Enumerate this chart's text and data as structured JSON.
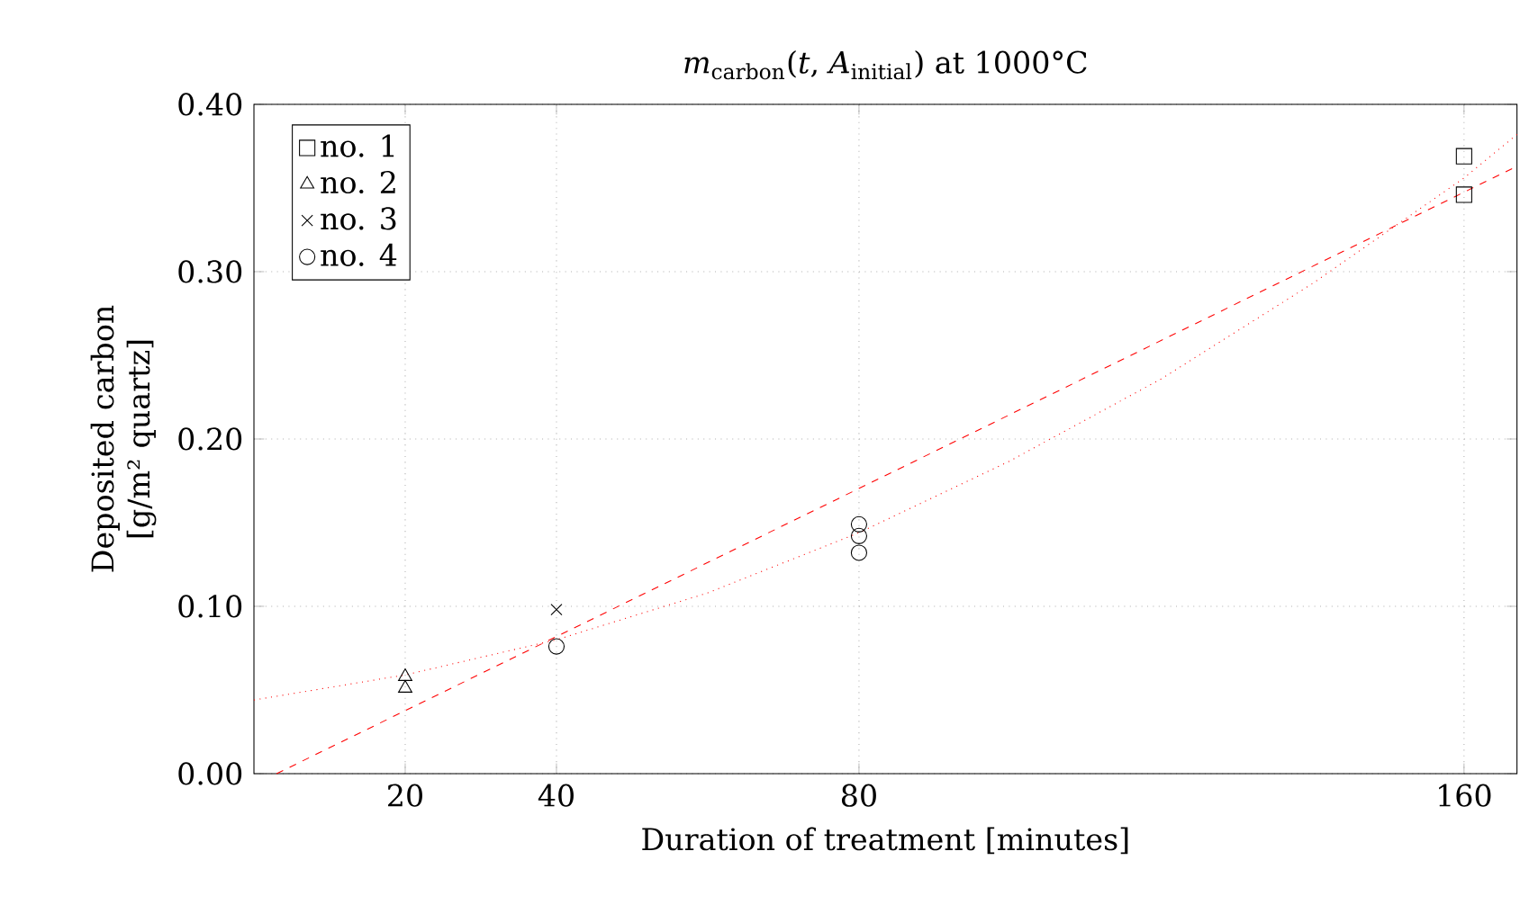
{
  "chart_data": {
    "type": "scatter",
    "title": "*m*$_{carbon}$(*t*, *A*$_{initial}$) at 1000°C",
    "xlabel": "Duration of treatment [minutes]",
    "ylabel": "Deposited carbon [g/m² quartz]",
    "xlim": [
      0,
      167
    ],
    "ylim": [
      0,
      0.4
    ],
    "xticks": [
      20,
      40,
      80,
      160
    ],
    "yticks": [
      {
        "value": 0,
        "label": "0.00"
      },
      {
        "value": 0.1,
        "label": "0.10"
      },
      {
        "value": 0.2,
        "label": "0.20"
      },
      {
        "value": 0.3,
        "label": "0.30"
      },
      {
        "value": 0.4,
        "label": "0.40"
      }
    ],
    "grid": true,
    "legend": "top left",
    "series": [
      {
        "name": "no. 1",
        "color": "#000000",
        "marker": "square",
        "x": [
          160,
          160
        ],
        "values": [
          0.369,
          0.346
        ]
      },
      {
        "name": "no. 2",
        "color": "#000000",
        "marker": "triangle",
        "x": [
          20,
          20
        ],
        "values": [
          0.058,
          0.051
        ]
      },
      {
        "name": "no. 3",
        "color": "#000000",
        "marker": "cross",
        "x": [
          40
        ],
        "values": [
          0.098
        ]
      },
      {
        "name": "no. 4",
        "color": "#000000",
        "marker": "circle",
        "x": [
          40,
          80,
          80,
          80
        ],
        "values": [
          0.076,
          0.149,
          0.142,
          0.132
        ]
      },
      {
        "type": "line",
        "color": "#ff0000",
        "line_style": "dashed",
        "marker": "none",
        "x": [
          3,
          167
        ],
        "values": [
          0,
          0.363
        ]
      },
      {
        "type": "line",
        "color": "#ff0000",
        "line_style": "dotted",
        "marker": "none",
        "x": [
          0,
          20,
          40,
          60,
          80,
          100,
          120,
          140,
          160,
          167
        ],
        "values": [
          0.044,
          0.059,
          0.08,
          0.108,
          0.144,
          0.187,
          0.236,
          0.293,
          0.356,
          0.382
        ]
      }
    ]
  }
}
